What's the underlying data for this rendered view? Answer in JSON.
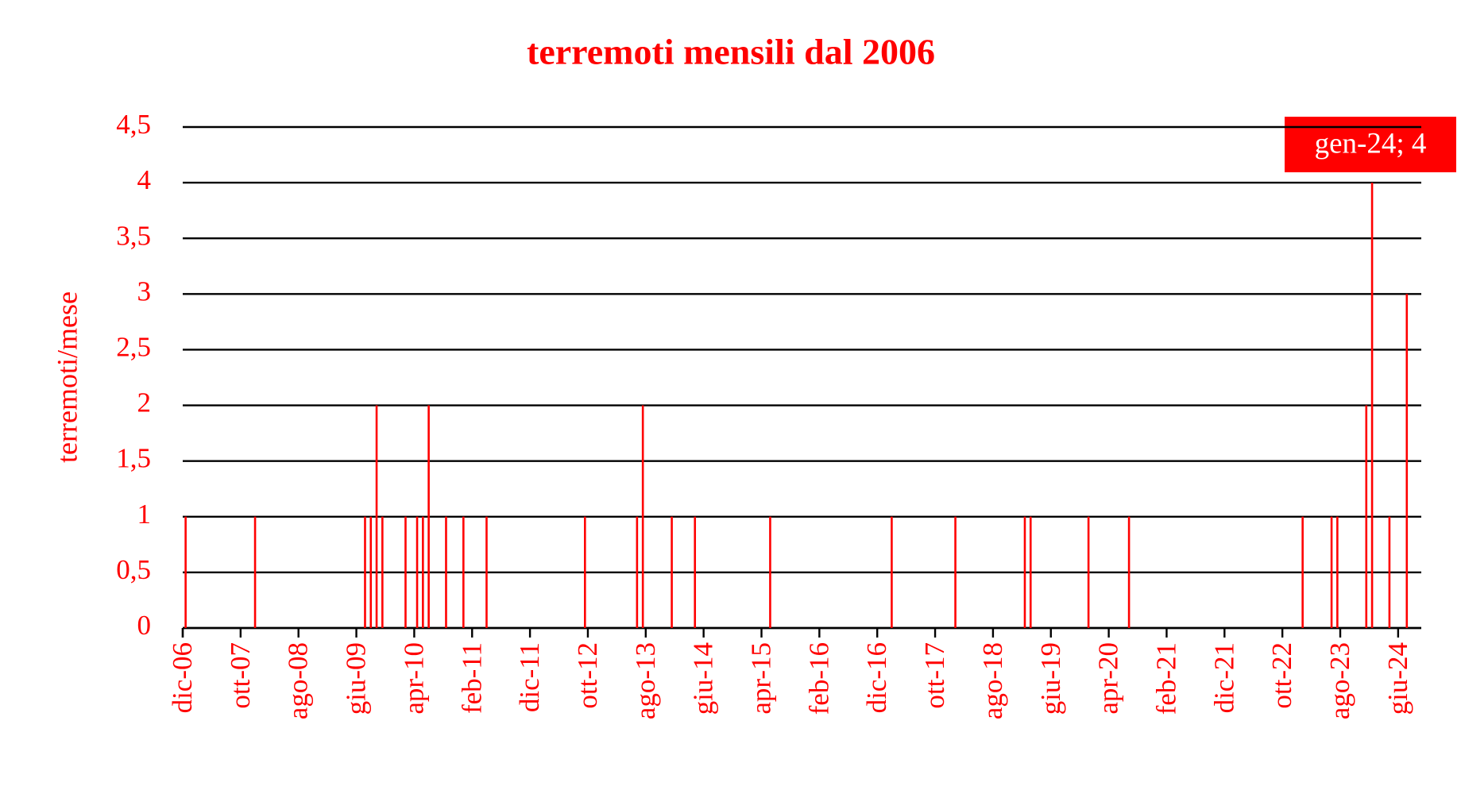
{
  "chart_data": {
    "type": "bar",
    "title": "terremoti mensili dal 2006",
    "y_label": "terremoti/mese",
    "categories": [
      "dic-06",
      null,
      null,
      null,
      null,
      null,
      null,
      null,
      null,
      null,
      "ott-07",
      null,
      null,
      null,
      null,
      null,
      null,
      null,
      null,
      null,
      "ago-08",
      null,
      null,
      null,
      null,
      null,
      null,
      null,
      null,
      null,
      "giu-09",
      null,
      null,
      null,
      null,
      null,
      null,
      null,
      null,
      null,
      "apr-10",
      null,
      null,
      null,
      null,
      null,
      null,
      null,
      null,
      null,
      "feb-11",
      null,
      null,
      null,
      null,
      null,
      null,
      null,
      null,
      null,
      "dic-11",
      null,
      null,
      null,
      null,
      null,
      null,
      null,
      null,
      null,
      "ott-12",
      null,
      null,
      null,
      null,
      null,
      null,
      null,
      null,
      null,
      "ago-13",
      null,
      null,
      null,
      null,
      null,
      null,
      null,
      null,
      null,
      "giu-14",
      null,
      null,
      null,
      null,
      null,
      null,
      null,
      null,
      null,
      "apr-15",
      null,
      null,
      null,
      null,
      null,
      null,
      null,
      null,
      null,
      "feb-16",
      null,
      null,
      null,
      null,
      null,
      null,
      null,
      null,
      null,
      "dic-16",
      null,
      null,
      null,
      null,
      null,
      null,
      null,
      null,
      null,
      "ott-17",
      null,
      null,
      null,
      null,
      null,
      null,
      null,
      null,
      null,
      "ago-18",
      null,
      null,
      null,
      null,
      null,
      null,
      null,
      null,
      null,
      "giu-19",
      null,
      null,
      null,
      null,
      null,
      null,
      null,
      null,
      null,
      "apr-20",
      null,
      null,
      null,
      null,
      null,
      null,
      null,
      null,
      null,
      "feb-21",
      null,
      null,
      null,
      null,
      null,
      null,
      null,
      null,
      null,
      "dic-21",
      null,
      null,
      null,
      null,
      null,
      null,
      null,
      null,
      null,
      "ott-22",
      null,
      null,
      null,
      null,
      null,
      null,
      null,
      null,
      null,
      "ago-23",
      null,
      null,
      null,
      null,
      null,
      null,
      null,
      null,
      null,
      "giu-24",
      null,
      null,
      null
    ],
    "values": [
      1,
      0,
      0,
      0,
      0,
      0,
      0,
      0,
      0,
      0,
      0,
      0,
      1,
      0,
      0,
      0,
      0,
      0,
      0,
      0,
      0,
      0,
      0,
      0,
      0,
      0,
      0,
      0,
      0,
      0,
      0,
      1,
      1,
      2,
      1,
      0,
      0,
      0,
      1,
      0,
      1,
      1,
      2,
      0,
      0,
      1,
      0,
      0,
      1,
      0,
      0,
      0,
      1,
      0,
      0,
      0,
      0,
      0,
      0,
      0,
      0,
      0,
      0,
      0,
      0,
      0,
      0,
      0,
      0,
      1,
      0,
      0,
      0,
      0,
      0,
      0,
      0,
      0,
      1,
      2,
      0,
      0,
      0,
      0,
      1,
      0,
      0,
      0,
      1,
      0,
      0,
      0,
      0,
      0,
      0,
      0,
      0,
      0,
      0,
      0,
      0,
      1,
      0,
      0,
      0,
      0,
      0,
      0,
      0,
      0,
      0,
      0,
      0,
      0,
      0,
      0,
      0,
      0,
      0,
      0,
      0,
      0,
      1,
      0,
      0,
      0,
      0,
      0,
      0,
      0,
      0,
      0,
      0,
      1,
      0,
      0,
      0,
      0,
      0,
      0,
      0,
      0,
      0,
      0,
      0,
      1,
      1,
      0,
      0,
      0,
      0,
      0,
      0,
      0,
      0,
      0,
      1,
      0,
      0,
      0,
      0,
      0,
      0,
      1,
      0,
      0,
      0,
      0,
      0,
      0,
      0,
      0,
      0,
      0,
      0,
      0,
      0,
      0,
      0,
      0,
      0,
      0,
      0,
      0,
      0,
      0,
      0,
      0,
      0,
      0,
      0,
      0,
      0,
      1,
      0,
      0,
      0,
      0,
      1,
      1,
      0,
      0,
      0,
      0,
      2,
      4,
      0,
      0,
      1,
      0,
      0,
      3,
      0,
      0
    ],
    "color": "#ff0000",
    "ylim": [
      0,
      4.5
    ],
    "yticks": [
      0,
      {
        "value": 0.5,
        "label": "0,5"
      },
      1,
      {
        "value": 1.5,
        "label": "1,5"
      },
      2,
      {
        "value": 2.5,
        "label": "2,5"
      },
      3,
      {
        "value": 3.5,
        "label": "3,5"
      },
      4,
      {
        "value": 4.5,
        "label": "4,5"
      }
    ],
    "grid": true,
    "annotation": "gen-24; 4"
  }
}
